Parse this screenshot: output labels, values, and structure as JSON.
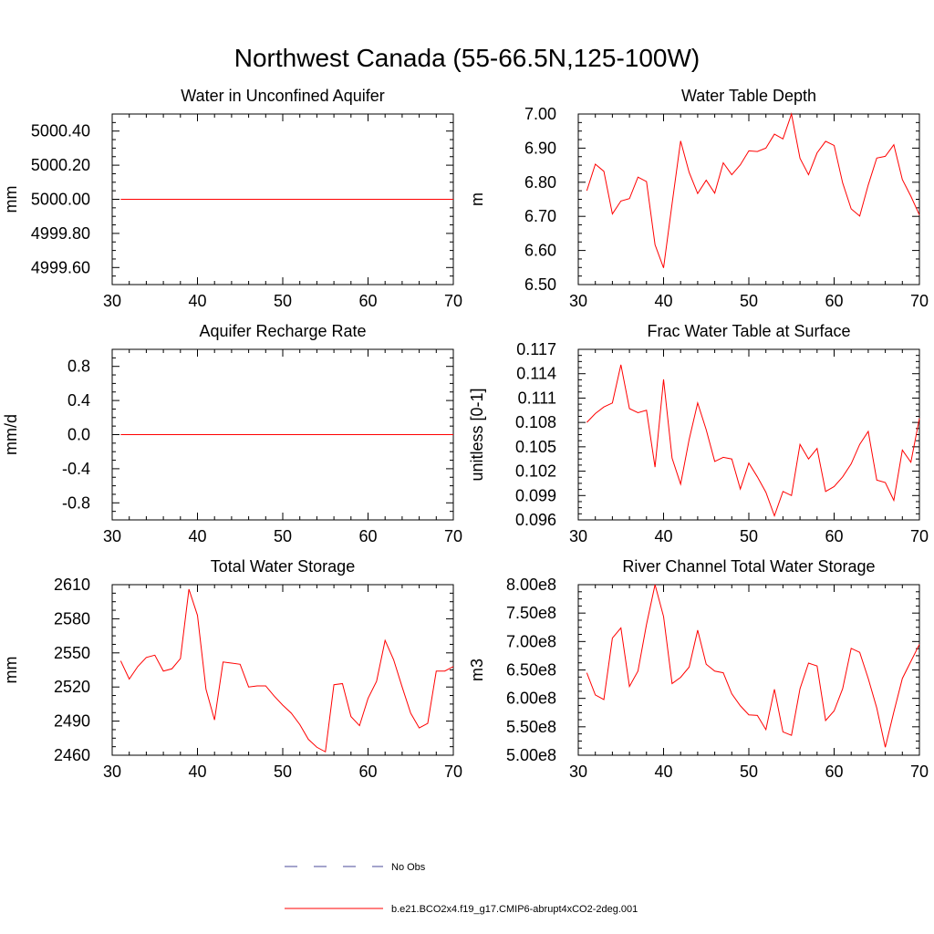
{
  "title": "Northwest Canada (55-66.5N,125-100W)",
  "colors": {
    "series": "#ff0000",
    "obs": "#4a4a9a",
    "axis": "#000000"
  },
  "legend": {
    "obs_label": "No Obs",
    "model_label": "b.e21.BCO2x4.f19_g17.CMIP6-abrupt4xCO2-2deg.001"
  },
  "chart_data": [
    {
      "type": "line",
      "title": "Water in Unconfined Aquifer",
      "ylabel": "mm",
      "xlim": [
        30,
        70
      ],
      "ylim": [
        4999.5,
        5000.5
      ],
      "xticks": [
        "30",
        "40",
        "50",
        "60",
        "70"
      ],
      "yticks": [
        4999.6,
        4999.8,
        5000.0,
        5000.2,
        5000.4
      ],
      "ytick_labels": [
        "4999.60",
        "4999.80",
        "5000.00",
        "5000.20",
        "5000.40"
      ],
      "x": [
        31,
        70
      ],
      "y": [
        5000.0,
        5000.0
      ]
    },
    {
      "type": "line",
      "title": "Water Table Depth",
      "ylabel": "m",
      "xlim": [
        30,
        70
      ],
      "ylim": [
        6.5,
        7.0
      ],
      "xticks": [
        "30",
        "40",
        "50",
        "60",
        "70"
      ],
      "yticks": [
        6.5,
        6.6,
        6.7,
        6.8,
        6.9,
        7.0
      ],
      "ytick_labels": [
        "6.50",
        "6.60",
        "6.70",
        "6.80",
        "6.90",
        "7.00"
      ],
      "x": [
        31,
        32,
        33,
        34,
        35,
        36,
        37,
        38,
        39,
        40,
        41,
        42,
        43,
        44,
        45,
        46,
        47,
        48,
        49,
        50,
        51,
        52,
        53,
        54,
        55,
        56,
        57,
        58,
        59,
        60,
        61,
        62,
        63,
        64,
        65,
        66,
        67,
        68,
        69,
        70
      ],
      "y": [
        6.775,
        6.853,
        6.832,
        6.707,
        6.745,
        6.752,
        6.815,
        6.802,
        6.617,
        6.549,
        6.737,
        6.921,
        6.829,
        6.767,
        6.806,
        6.768,
        6.857,
        6.822,
        6.851,
        6.892,
        6.89,
        6.9,
        6.941,
        6.927,
        7.0,
        6.87,
        6.822,
        6.886,
        6.92,
        6.908,
        6.798,
        6.722,
        6.701,
        6.792,
        6.871,
        6.876,
        6.91,
        6.808,
        6.759,
        6.704
      ]
    },
    {
      "type": "line",
      "title": "Aquifer Recharge Rate",
      "ylabel": "mm/d",
      "xlim": [
        30,
        70
      ],
      "ylim": [
        -1.0,
        1.0
      ],
      "xticks": [
        "30",
        "40",
        "50",
        "60",
        "70"
      ],
      "yticks": [
        -0.8,
        -0.4,
        0.0,
        0.4,
        0.8
      ],
      "ytick_labels": [
        "-0.8",
        "-0.4",
        "0.0",
        "0.4",
        "0.8"
      ],
      "x": [
        31,
        70
      ],
      "y": [
        0.0,
        0.0
      ]
    },
    {
      "type": "line",
      "title": "Frac Water Table at Surface",
      "ylabel": "unitless [0-1]",
      "xlim": [
        30,
        70
      ],
      "ylim": [
        0.096,
        0.117
      ],
      "xticks": [
        "30",
        "40",
        "50",
        "60",
        "70"
      ],
      "yticks": [
        0.096,
        0.099,
        0.102,
        0.105,
        0.108,
        0.111,
        0.114,
        0.117
      ],
      "ytick_labels": [
        "0.096",
        "0.099",
        "0.102",
        "0.105",
        "0.108",
        "0.111",
        "0.114",
        "0.117"
      ],
      "x": [
        31,
        32,
        33,
        34,
        35,
        36,
        37,
        38,
        39,
        40,
        41,
        42,
        43,
        44,
        45,
        46,
        47,
        48,
        49,
        50,
        51,
        52,
        53,
        54,
        55,
        56,
        57,
        58,
        59,
        60,
        61,
        62,
        63,
        64,
        65,
        66,
        67,
        68,
        69,
        70
      ],
      "y": [
        0.108,
        0.1091,
        0.1099,
        0.1104,
        0.1151,
        0.1097,
        0.1092,
        0.1095,
        0.1025,
        0.1133,
        0.1036,
        0.1004,
        0.1059,
        0.1104,
        0.1071,
        0.1032,
        0.1037,
        0.1035,
        0.0998,
        0.103,
        0.1013,
        0.0994,
        0.0965,
        0.0995,
        0.099,
        0.1053,
        0.1035,
        0.1048,
        0.0995,
        0.1001,
        0.1013,
        0.1029,
        0.1053,
        0.1069,
        0.1009,
        0.1006,
        0.0984,
        0.1046,
        0.1031,
        0.1085
      ]
    },
    {
      "type": "line",
      "title": "Total Water Storage",
      "ylabel": "mm",
      "xlim": [
        30,
        70
      ],
      "ylim": [
        2460,
        2610
      ],
      "xticks": [
        "30",
        "40",
        "50",
        "60",
        "70"
      ],
      "yticks": [
        2460,
        2490,
        2520,
        2550,
        2580,
        2610
      ],
      "ytick_labels": [
        "2460",
        "2490",
        "2520",
        "2550",
        "2580",
        "2610"
      ],
      "x": [
        31,
        32,
        33,
        34,
        35,
        36,
        37,
        38,
        39,
        40,
        41,
        42,
        43,
        44,
        45,
        46,
        47,
        48,
        49,
        50,
        51,
        52,
        53,
        54,
        55,
        56,
        57,
        58,
        59,
        60,
        61,
        62,
        63,
        64,
        65,
        66,
        67,
        68,
        69,
        70
      ],
      "y": [
        2543,
        2527,
        2538,
        2546,
        2548,
        2534,
        2536,
        2545,
        2606,
        2583,
        2518,
        2491,
        2542,
        2541,
        2540,
        2520,
        2521,
        2521,
        2512,
        2504,
        2497,
        2487,
        2474,
        2467,
        2463,
        2522,
        2523,
        2494,
        2486,
        2510,
        2525,
        2561,
        2544,
        2520,
        2497,
        2484,
        2488,
        2534,
        2534,
        2538
      ]
    },
    {
      "type": "line",
      "title": "River Channel Total Water Storage",
      "ylabel": "m3",
      "xlim": [
        30,
        70
      ],
      "ylim": [
        500000000,
        800000000
      ],
      "xticks": [
        "30",
        "40",
        "50",
        "60",
        "70"
      ],
      "yticks": [
        500000000,
        550000000,
        600000000,
        650000000,
        700000000,
        750000000,
        800000000
      ],
      "ytick_labels": [
        "5.00e8",
        "5.50e8",
        "6.00e8",
        "6.50e8",
        "7.00e8",
        "7.50e8",
        "8.00e8"
      ],
      "x": [
        31,
        32,
        33,
        34,
        35,
        36,
        37,
        38,
        39,
        40,
        41,
        42,
        43,
        44,
        45,
        46,
        47,
        48,
        49,
        50,
        51,
        52,
        53,
        54,
        55,
        56,
        57,
        58,
        59,
        60,
        61,
        62,
        63,
        64,
        65,
        66,
        67,
        68,
        69,
        70
      ],
      "y": [
        645000000,
        606000000,
        598000000,
        706000000,
        724000000,
        621000000,
        648000000,
        730000000,
        800000000,
        744000000,
        626000000,
        637000000,
        655000000,
        720000000,
        660000000,
        648000000,
        645000000,
        608000000,
        587000000,
        571000000,
        570000000,
        545000000,
        616000000,
        541000000,
        535000000,
        617000000,
        662000000,
        657000000,
        561000000,
        578000000,
        617000000,
        688000000,
        681000000,
        635000000,
        583000000,
        514000000,
        576000000,
        635000000,
        665000000,
        695000000
      ]
    }
  ]
}
